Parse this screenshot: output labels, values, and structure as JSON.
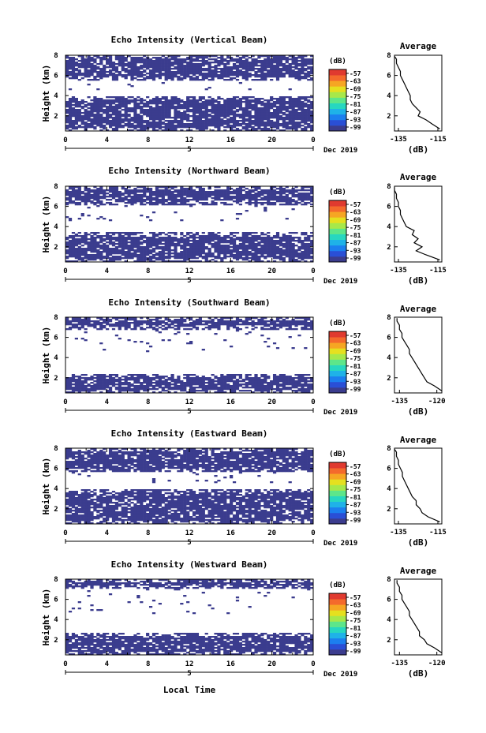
{
  "figure": {
    "xlabel": "Local Time",
    "date_label": "Dec 2019",
    "day_label": "5",
    "ylabel": "Height (km)",
    "colorbar": {
      "unit": "(dB)",
      "ticks": [
        "-57",
        "-63",
        "-69",
        "-75",
        "-81",
        "-87",
        "-93",
        "-99"
      ],
      "colors": [
        "#3b3c8e",
        "#2a4fd6",
        "#1c7fef",
        "#1fb2e8",
        "#27d7c0",
        "#5de68a",
        "#a7e84a",
        "#e6e01f",
        "#f6a623",
        "#f46a2c",
        "#e03a2f"
      ]
    },
    "x_ticks": [
      "0",
      "4",
      "8",
      "12",
      "16",
      "20",
      "0"
    ],
    "y_ticks": [
      "2",
      "4",
      "6",
      "8"
    ]
  },
  "chart_data": [
    {
      "type": "heatmap",
      "title": "Echo Intensity (Vertical Beam)",
      "x_range_hours": [
        0,
        24
      ],
      "y_range_km": [
        0.5,
        8
      ],
      "echo_bands_km": [
        [
          0.5,
          3.9
        ],
        [
          5.5,
          8
        ]
      ],
      "average": {
        "title": "Average",
        "xlabel": "(dB)",
        "xticks": [
          "-135",
          "-115"
        ],
        "xlim": [
          -137,
          -113
        ],
        "heights": [
          0.7,
          1.2,
          1.6,
          2.0,
          2.4,
          2.8,
          3.2,
          3.6,
          4.0,
          4.4,
          4.8,
          5.2,
          5.6,
          6.0,
          6.4,
          6.8,
          7.2,
          7.6,
          7.9
        ],
        "values": [
          -114,
          -118,
          -121,
          -125,
          -124,
          -126,
          -128,
          -129,
          -129,
          -130,
          -131,
          -132,
          -133,
          -134,
          -134,
          -135,
          -136,
          -136,
          -137
        ]
      }
    },
    {
      "type": "heatmap",
      "title": "Echo Intensity (Northward Beam)",
      "x_range_hours": [
        0,
        24
      ],
      "y_range_km": [
        0.5,
        8
      ],
      "echo_bands_km": [
        [
          0.5,
          3.4
        ],
        [
          6.2,
          8
        ]
      ],
      "average": {
        "title": "Average",
        "xlabel": "(dB)",
        "xticks": [
          "-135",
          "-115"
        ],
        "xlim": [
          -137,
          -113
        ],
        "heights": [
          0.7,
          1.2,
          1.6,
          2.0,
          2.4,
          2.8,
          3.2,
          3.6,
          4.0,
          4.4,
          4.8,
          5.2,
          5.6,
          6.0,
          6.4,
          6.8,
          7.2,
          7.6,
          7.9
        ],
        "values": [
          -114,
          -121,
          -126,
          -123,
          -127,
          -125,
          -128,
          -127,
          -131,
          -132,
          -133,
          -134,
          -134,
          -135,
          -135,
          -136,
          -136,
          -137,
          -137
        ]
      }
    },
    {
      "type": "heatmap",
      "title": "Echo Intensity (Southward Beam)",
      "x_range_hours": [
        0,
        24
      ],
      "y_range_km": [
        0.5,
        8
      ],
      "echo_bands_km": [
        [
          0.5,
          2.4
        ],
        [
          6.8,
          8
        ]
      ],
      "average": {
        "title": "Average",
        "xlabel": "(dB)",
        "xticks": [
          "-135",
          "-120"
        ],
        "xlim": [
          -137,
          -118
        ],
        "heights": [
          0.7,
          1.2,
          1.6,
          2.0,
          2.4,
          2.8,
          3.2,
          3.6,
          4.0,
          4.4,
          4.8,
          5.2,
          5.6,
          6.0,
          6.4,
          6.8,
          7.2,
          7.6,
          7.9
        ],
        "values": [
          -118,
          -121,
          -124,
          -125,
          -126,
          -127,
          -128,
          -129,
          -130,
          -131,
          -131,
          -132,
          -133,
          -134,
          -134,
          -135,
          -135,
          -136,
          -136
        ]
      }
    },
    {
      "type": "heatmap",
      "title": "Echo Intensity (Eastward Beam)",
      "x_range_hours": [
        0,
        24
      ],
      "y_range_km": [
        0.5,
        8
      ],
      "echo_bands_km": [
        [
          0.5,
          4.0
        ],
        [
          5.6,
          8
        ]
      ],
      "average": {
        "title": "Average",
        "xlabel": "(dB)",
        "xticks": [
          "-135",
          "-115"
        ],
        "xlim": [
          -137,
          -113
        ],
        "heights": [
          0.7,
          1.2,
          1.6,
          2.0,
          2.4,
          2.8,
          3.2,
          3.6,
          4.0,
          4.4,
          4.8,
          5.2,
          5.6,
          6.0,
          6.4,
          6.8,
          7.2,
          7.6,
          7.9
        ],
        "values": [
          -114,
          -120,
          -123,
          -124,
          -126,
          -126,
          -128,
          -129,
          -130,
          -131,
          -132,
          -133,
          -133,
          -134,
          -135,
          -135,
          -136,
          -136,
          -137
        ]
      }
    },
    {
      "type": "heatmap",
      "title": "Echo Intensity (Westward Beam)",
      "x_range_hours": [
        0,
        24
      ],
      "y_range_km": [
        0.5,
        8
      ],
      "echo_bands_km": [
        [
          0.5,
          2.7
        ],
        [
          7.0,
          8
        ]
      ],
      "average": {
        "title": "Average",
        "xlabel": "(dB)",
        "xticks": [
          "-135",
          "-120"
        ],
        "xlim": [
          -137,
          -118
        ],
        "heights": [
          0.7,
          1.2,
          1.6,
          2.0,
          2.4,
          2.8,
          3.2,
          3.6,
          4.0,
          4.4,
          4.8,
          5.2,
          5.6,
          6.0,
          6.4,
          6.8,
          7.2,
          7.6,
          7.9
        ],
        "values": [
          -118,
          -121,
          -124,
          -125,
          -127,
          -127,
          -128,
          -129,
          -130,
          -131,
          -131,
          -132,
          -133,
          -134,
          -134,
          -135,
          -135,
          -136,
          -136
        ]
      }
    }
  ]
}
